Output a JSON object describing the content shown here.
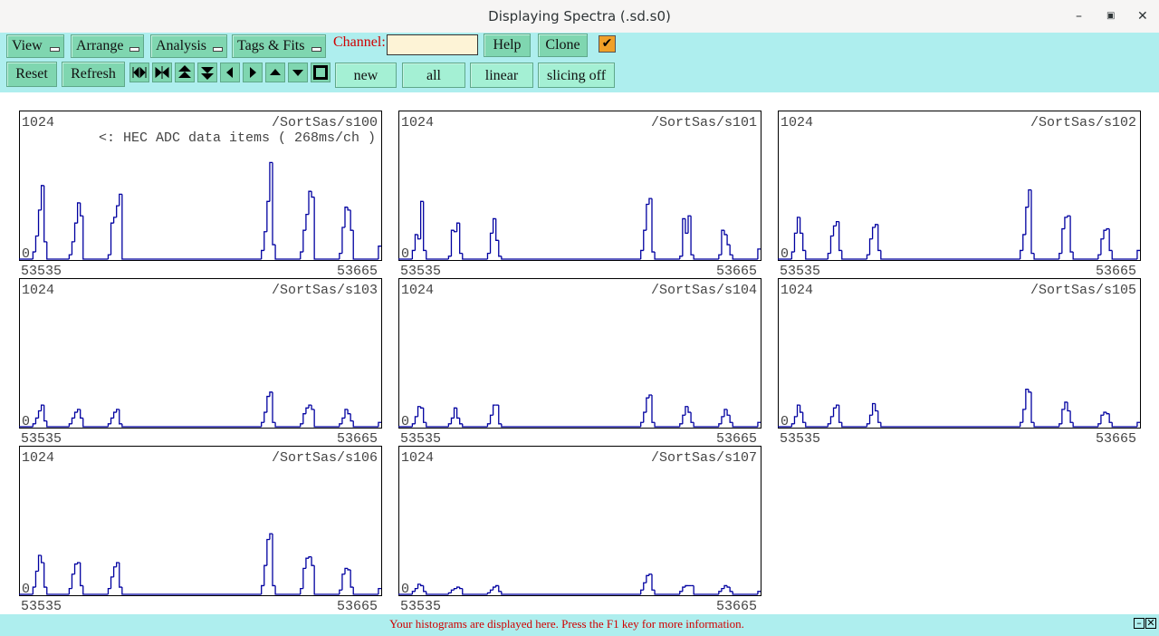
{
  "ui": {
    "window_title": "Displaying Spectra (.sd.s0)",
    "menus": [
      "View",
      "Arrange",
      "Analysis",
      "Tags & Fits"
    ],
    "channel_label": "Channel:",
    "buttons": [
      "Help",
      "Clone"
    ],
    "actions": [
      "Reset",
      "Refresh"
    ],
    "modes": [
      "new",
      "all",
      "linear",
      "slicing off"
    ],
    "status": "Your histograms are displayed here. Press the F1 key for more information."
  },
  "chart_data": [
    {
      "type": "histogram",
      "title": "/SortSas/s100",
      "annotation": "<: HEC ADC data items ( 268ms/ch )",
      "color": "#0000a0",
      "xlim": [
        53535,
        53665
      ],
      "ylim": [
        0,
        1024
      ],
      "xticks": [
        53535,
        53665
      ],
      "yticks": [
        0,
        1024
      ],
      "bins": [
        53535,
        53540,
        53541,
        53542,
        53543,
        53544,
        53545,
        53553,
        53554,
        53555,
        53556,
        53557,
        53558,
        53567,
        53568,
        53569,
        53570,
        53571,
        53572,
        53622,
        53623,
        53624,
        53625,
        53626,
        53627,
        53636,
        53637,
        53638,
        53639,
        53640,
        53641,
        53650,
        53651,
        53652,
        53653,
        53654,
        53655,
        53664,
        53665
      ],
      "values": [
        0,
        50,
        160,
        340,
        510,
        120,
        0,
        30,
        120,
        250,
        390,
        300,
        0,
        30,
        250,
        290,
        370,
        450,
        0,
        60,
        190,
        400,
        670,
        100,
        0,
        50,
        200,
        310,
        470,
        430,
        0,
        40,
        220,
        360,
        340,
        200,
        0,
        90
      ]
    },
    {
      "type": "histogram",
      "title": "/SortSas/s101",
      "color": "#0000a0",
      "xlim": [
        53535,
        53665
      ],
      "ylim": [
        0,
        1024
      ],
      "xticks": [
        53535,
        53665
      ],
      "yticks": [
        0,
        1024
      ],
      "bins": [
        53535,
        53540,
        53541,
        53542,
        53543,
        53544,
        53545,
        53553,
        53554,
        53555,
        53556,
        53557,
        53558,
        53567,
        53568,
        53569,
        53570,
        53571,
        53572,
        53622,
        53623,
        53624,
        53625,
        53626,
        53627,
        53636,
        53637,
        53638,
        53639,
        53640,
        53641,
        53650,
        53651,
        53652,
        53653,
        53654,
        53655,
        53664,
        53665
      ],
      "values": [
        0,
        60,
        170,
        140,
        400,
        60,
        0,
        20,
        200,
        190,
        250,
        40,
        0,
        40,
        180,
        280,
        130,
        20,
        0,
        60,
        200,
        380,
        420,
        50,
        0,
        20,
        280,
        180,
        300,
        30,
        0,
        30,
        200,
        170,
        100,
        30,
        0,
        70
      ]
    },
    {
      "type": "histogram",
      "title": "/SortSas/s102",
      "color": "#0000a0",
      "xlim": [
        53535,
        53665
      ],
      "ylim": [
        0,
        1024
      ],
      "xticks": [
        53535,
        53665
      ],
      "yticks": [
        0,
        1024
      ],
      "bins": [
        53535,
        53540,
        53541,
        53542,
        53543,
        53544,
        53545,
        53553,
        53554,
        53555,
        53556,
        53557,
        53558,
        53567,
        53568,
        53569,
        53570,
        53571,
        53572,
        53622,
        53623,
        53624,
        53625,
        53626,
        53627,
        53636,
        53637,
        53638,
        53639,
        53640,
        53641,
        53650,
        53651,
        53652,
        53653,
        53654,
        53655,
        53664,
        53665
      ],
      "values": [
        0,
        50,
        180,
        290,
        180,
        60,
        0,
        40,
        160,
        230,
        260,
        60,
        0,
        30,
        140,
        220,
        240,
        60,
        0,
        60,
        170,
        360,
        480,
        40,
        0,
        40,
        210,
        290,
        300,
        50,
        0,
        30,
        140,
        200,
        210,
        60,
        0,
        60
      ]
    },
    {
      "type": "histogram",
      "title": "/SortSas/s103",
      "color": "#0000a0",
      "xlim": [
        53535,
        53665
      ],
      "ylim": [
        0,
        1024
      ],
      "xticks": [
        53535,
        53665
      ],
      "yticks": [
        0,
        1024
      ],
      "bins": [
        53535,
        53540,
        53541,
        53542,
        53543,
        53544,
        53545,
        53553,
        53554,
        53555,
        53556,
        53557,
        53558,
        53567,
        53568,
        53569,
        53570,
        53571,
        53572,
        53622,
        53623,
        53624,
        53625,
        53626,
        53627,
        53636,
        53637,
        53638,
        53639,
        53640,
        53641,
        53650,
        53651,
        53652,
        53653,
        53654,
        53655,
        53664,
        53665
      ],
      "values": [
        0,
        20,
        60,
        110,
        150,
        40,
        0,
        20,
        60,
        100,
        120,
        60,
        0,
        20,
        60,
        100,
        120,
        20,
        0,
        30,
        100,
        210,
        240,
        30,
        0,
        20,
        90,
        130,
        150,
        120,
        0,
        20,
        60,
        120,
        90,
        40,
        0,
        30
      ]
    },
    {
      "type": "histogram",
      "title": "/SortSas/s104",
      "color": "#0000a0",
      "xlim": [
        53535,
        53665
      ],
      "ylim": [
        0,
        1024
      ],
      "xticks": [
        53535,
        53665
      ],
      "yticks": [
        0,
        1024
      ],
      "bins": [
        53535,
        53540,
        53541,
        53542,
        53543,
        53544,
        53545,
        53553,
        53554,
        53555,
        53556,
        53557,
        53558,
        53567,
        53568,
        53569,
        53570,
        53571,
        53572,
        53622,
        53623,
        53624,
        53625,
        53626,
        53627,
        53636,
        53637,
        53638,
        53639,
        53640,
        53641,
        53650,
        53651,
        53652,
        53653,
        53654,
        53655,
        53664,
        53665
      ],
      "values": [
        0,
        20,
        70,
        140,
        130,
        30,
        0,
        20,
        60,
        130,
        60,
        20,
        0,
        20,
        80,
        150,
        150,
        20,
        0,
        30,
        100,
        200,
        220,
        30,
        0,
        20,
        80,
        140,
        100,
        30,
        0,
        20,
        70,
        120,
        80,
        30,
        0,
        30
      ]
    },
    {
      "type": "histogram",
      "title": "/SortSas/s105",
      "color": "#0000a0",
      "xlim": [
        53535,
        53665
      ],
      "ylim": [
        0,
        1024
      ],
      "xticks": [
        53535,
        53665
      ],
      "yticks": [
        0,
        1024
      ],
      "bins": [
        53535,
        53540,
        53541,
        53542,
        53543,
        53544,
        53545,
        53553,
        53554,
        53555,
        53556,
        53557,
        53558,
        53567,
        53568,
        53569,
        53570,
        53571,
        53572,
        53622,
        53623,
        53624,
        53625,
        53626,
        53627,
        53636,
        53637,
        53638,
        53639,
        53640,
        53641,
        53650,
        53651,
        53652,
        53653,
        53654,
        53655,
        53664,
        53665
      ],
      "values": [
        0,
        20,
        70,
        150,
        100,
        30,
        0,
        20,
        70,
        130,
        150,
        30,
        0,
        20,
        80,
        160,
        110,
        30,
        0,
        30,
        120,
        260,
        240,
        30,
        0,
        20,
        120,
        170,
        110,
        30,
        0,
        20,
        80,
        100,
        90,
        30,
        0,
        30
      ]
    },
    {
      "type": "histogram",
      "title": "/SortSas/s106",
      "color": "#0000a0",
      "xlim": [
        53535,
        53665
      ],
      "ylim": [
        0,
        1024
      ],
      "xticks": [
        53535,
        53665
      ],
      "yticks": [
        0,
        1024
      ],
      "bins": [
        53535,
        53540,
        53541,
        53542,
        53543,
        53544,
        53545,
        53553,
        53554,
        53555,
        53556,
        53557,
        53558,
        53567,
        53568,
        53569,
        53570,
        53571,
        53572,
        53622,
        53623,
        53624,
        53625,
        53626,
        53627,
        53636,
        53637,
        53638,
        53639,
        53640,
        53641,
        53650,
        53651,
        53652,
        53653,
        53654,
        53655,
        53664,
        53665
      ],
      "values": [
        0,
        50,
        160,
        270,
        220,
        50,
        0,
        40,
        140,
        210,
        220,
        60,
        0,
        40,
        120,
        190,
        220,
        50,
        0,
        60,
        200,
        380,
        420,
        60,
        0,
        40,
        180,
        250,
        260,
        200,
        0,
        30,
        140,
        180,
        170,
        50,
        0,
        40
      ]
    },
    {
      "type": "histogram",
      "title": "/SortSas/s107",
      "color": "#0000a0",
      "xlim": [
        53535,
        53665
      ],
      "ylim": [
        0,
        1024
      ],
      "xticks": [
        53535,
        53665
      ],
      "yticks": [
        0,
        1024
      ],
      "bins": [
        53535,
        53540,
        53541,
        53542,
        53543,
        53544,
        53545,
        53553,
        53554,
        53555,
        53556,
        53557,
        53558,
        53567,
        53568,
        53569,
        53570,
        53571,
        53572,
        53622,
        53623,
        53624,
        53625,
        53626,
        53627,
        53636,
        53637,
        53638,
        53639,
        53640,
        53641,
        53650,
        53651,
        53652,
        53653,
        53654,
        53655,
        53664,
        53665
      ],
      "values": [
        0,
        20,
        40,
        70,
        60,
        20,
        0,
        10,
        30,
        40,
        50,
        40,
        0,
        10,
        30,
        50,
        60,
        20,
        0,
        30,
        80,
        130,
        140,
        30,
        0,
        20,
        50,
        60,
        60,
        60,
        0,
        20,
        40,
        60,
        50,
        20,
        0,
        20
      ]
    }
  ]
}
